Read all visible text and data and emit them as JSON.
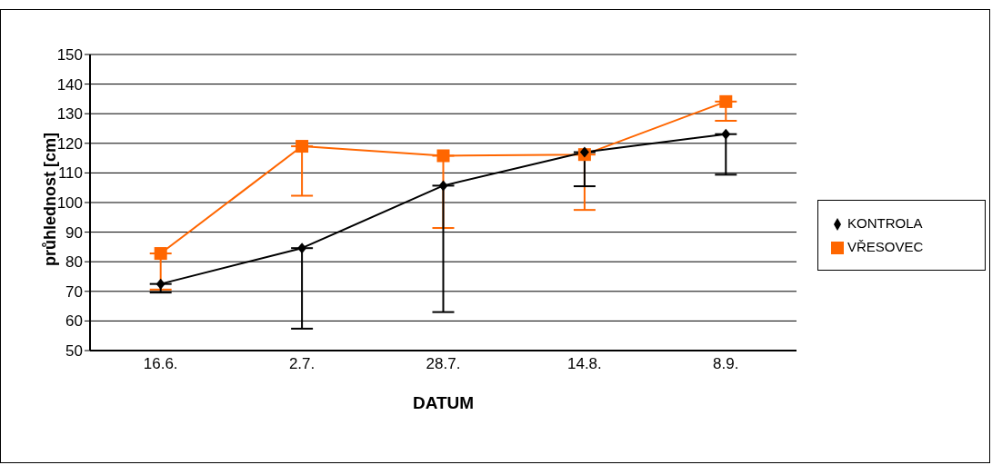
{
  "chart_data": {
    "type": "line",
    "xlabel": "DATUM",
    "ylabel": "průhlednost [cm]",
    "categories": [
      "16.6.",
      "2.7.",
      "28.7.",
      "14.8.",
      "8.9."
    ],
    "series": [
      {
        "name": "KONTROLA",
        "color": "#000000",
        "marker": "diamond",
        "values": [
          72.5,
          84.6,
          105.7,
          117,
          123.1
        ],
        "errors": [
          [
            69.6,
            72.5
          ],
          [
            57.4,
            84.6
          ],
          [
            63,
            105.7
          ],
          [
            105.5,
            117
          ],
          [
            109.4,
            123.1
          ]
        ]
      },
      {
        "name": "VŘESOVEC",
        "color": "#ff6600",
        "marker": "square",
        "values": [
          82.8,
          119,
          115.8,
          116.2,
          134.1
        ],
        "errors": [
          [
            70.6,
            82.8
          ],
          [
            102.3,
            119
          ],
          [
            91.4,
            115.8
          ],
          [
            97.5,
            116.2
          ],
          [
            127.6,
            134.1
          ]
        ]
      }
    ],
    "ylim": [
      50,
      150
    ],
    "yticks": [
      50,
      60,
      70,
      80,
      90,
      100,
      110,
      120,
      130,
      140,
      150
    ],
    "grid": "y",
    "legend": "right"
  }
}
